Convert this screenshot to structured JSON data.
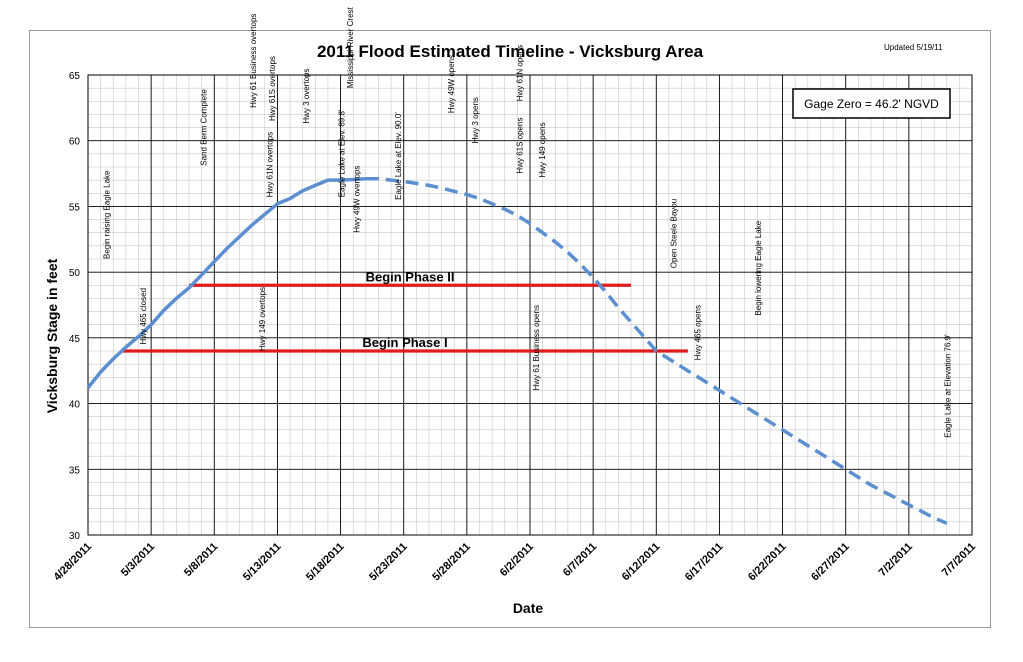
{
  "chart_data": {
    "type": "line",
    "title": "2011 Flood Estimated Timeline - Vicksburg Area",
    "updated": "Updated 5/19/11",
    "xlabel": "Date",
    "ylabel": "Vicksburg Stage in feet",
    "x_start": "2011-04-28",
    "x_end": "2011-07-07",
    "xlim_days": [
      0,
      70
    ],
    "ylim": [
      30,
      65
    ],
    "y_ticks": [
      30,
      35,
      40,
      45,
      50,
      55,
      60,
      65
    ],
    "x_ticks": [
      {
        "day": 0,
        "label": "4/28/2011"
      },
      {
        "day": 5,
        "label": "5/3/2011"
      },
      {
        "day": 10,
        "label": "5/8/2011"
      },
      {
        "day": 15,
        "label": "5/13/2011"
      },
      {
        "day": 20,
        "label": "5/18/2011"
      },
      {
        "day": 25,
        "label": "5/23/2011"
      },
      {
        "day": 30,
        "label": "5/28/2011"
      },
      {
        "day": 35,
        "label": "6/2/2011"
      },
      {
        "day": 40,
        "label": "6/7/2011"
      },
      {
        "day": 45,
        "label": "6/12/2011"
      },
      {
        "day": 50,
        "label": "6/17/2011"
      },
      {
        "day": 55,
        "label": "6/22/2011"
      },
      {
        "day": 60,
        "label": "6/27/2011"
      },
      {
        "day": 65,
        "label": "7/2/2011"
      },
      {
        "day": 70,
        "label": "7/7/2011"
      }
    ],
    "grid": true,
    "gage_note": "Gage Zero = 46.2' NGVD",
    "series": [
      {
        "style": "solid",
        "color": "#5b8fd0",
        "points": [
          [
            0,
            41.2
          ],
          [
            1,
            42.4
          ],
          [
            2,
            43.4
          ],
          [
            3,
            44.3
          ],
          [
            4,
            45.1
          ],
          [
            5,
            46.0
          ],
          [
            6,
            47.1
          ],
          [
            7,
            48.0
          ],
          [
            8,
            48.8
          ],
          [
            9,
            49.8
          ],
          [
            10,
            50.8
          ],
          [
            11,
            51.8
          ],
          [
            12,
            52.7
          ],
          [
            13,
            53.6
          ],
          [
            14,
            54.4
          ],
          [
            15,
            55.2
          ],
          [
            16,
            55.6
          ],
          [
            17,
            56.2
          ],
          [
            18,
            56.6
          ],
          [
            19,
            57.0
          ],
          [
            20,
            57.0
          ],
          [
            21,
            57.05
          ],
          [
            22,
            57.1
          ]
        ]
      },
      {
        "style": "dashed",
        "color": "#5b8fd0",
        "points": [
          [
            22,
            57.1
          ],
          [
            23,
            57.1
          ],
          [
            24,
            57.0
          ],
          [
            25,
            56.9
          ],
          [
            26,
            56.75
          ],
          [
            27,
            56.6
          ],
          [
            28,
            56.4
          ],
          [
            29,
            56.15
          ],
          [
            30,
            55.9
          ],
          [
            31,
            55.6
          ],
          [
            32,
            55.2
          ],
          [
            33,
            54.8
          ],
          [
            34,
            54.3
          ],
          [
            35,
            53.7
          ],
          [
            36,
            53.0
          ],
          [
            37,
            52.3
          ],
          [
            38,
            51.5
          ],
          [
            39,
            50.6
          ],
          [
            40,
            49.6
          ],
          [
            41,
            48.5
          ],
          [
            42,
            47.3
          ],
          [
            43,
            46.2
          ],
          [
            44,
            45.1
          ],
          [
            45,
            44.0
          ],
          [
            46,
            43.4
          ],
          [
            47,
            42.8
          ],
          [
            48,
            42.2
          ],
          [
            49,
            41.6
          ],
          [
            50,
            41.0
          ],
          [
            51,
            40.4
          ],
          [
            52,
            39.8
          ],
          [
            53,
            39.2
          ],
          [
            54,
            38.6
          ],
          [
            55,
            38.0
          ],
          [
            56,
            37.4
          ],
          [
            57,
            36.8
          ],
          [
            58,
            36.2
          ],
          [
            59,
            35.6
          ],
          [
            60,
            35.0
          ],
          [
            61,
            34.4
          ],
          [
            62,
            33.8
          ],
          [
            63,
            33.3
          ],
          [
            64,
            32.8
          ],
          [
            65,
            32.3
          ],
          [
            66,
            31.8
          ],
          [
            67,
            31.3
          ],
          [
            68,
            30.9
          ]
        ]
      }
    ],
    "phases": [
      {
        "label": "Begin Phase I",
        "x_start": 2.7,
        "x_end": 47.5,
        "y": 44.0,
        "color": "#e01c1c"
      },
      {
        "label": "Begin Phase II",
        "x_start": 8.0,
        "x_end": 43.0,
        "y": 49.0,
        "color": "#e01c1c"
      }
    ],
    "annotations": [
      {
        "text": "Begin raising Eagle Lake",
        "day": 1.7,
        "stage": 51
      },
      {
        "text": "Hwy 465 closed",
        "day": 4.6,
        "stage": 44.5
      },
      {
        "text": "Sand Berm Complete",
        "day": 9.4,
        "stage": 58.1
      },
      {
        "text": "Hwy 61 Business overtops",
        "day": 13.3,
        "stage": 62.5
      },
      {
        "text": "Hwy 61S overtops",
        "day": 14.8,
        "stage": 61.5
      },
      {
        "text": "Hwy 61N overtops",
        "day": 14.6,
        "stage": 55.7
      },
      {
        "text": "Hwy 149 overtops",
        "day": 14.0,
        "stage": 44.0
      },
      {
        "text": "Hwy 3 overtops",
        "day": 17.5,
        "stage": 61.3
      },
      {
        "text": "Mississippi River Crest",
        "day": 21.0,
        "stage": 64.0
      },
      {
        "text": "Eagle Lake at Elev. 89.8'",
        "day": 20.3,
        "stage": 55.7
      },
      {
        "text": "Hwy 49W overtops",
        "day": 21.5,
        "stage": 53.0
      },
      {
        "text": "Eagle Lake at Elev. 90.0'",
        "day": 24.8,
        "stage": 55.5
      },
      {
        "text": "Hwy 49W opens",
        "day": 29.0,
        "stage": 62.1
      },
      {
        "text": "Hwy 3 opens",
        "day": 30.9,
        "stage": 59.8
      },
      {
        "text": "Hwy 61N opens",
        "day": 34.4,
        "stage": 63.0
      },
      {
        "text": "Hwy 61S opens",
        "day": 34.4,
        "stage": 57.5
      },
      {
        "text": "Hwy 149 opens",
        "day": 36.2,
        "stage": 57.2
      },
      {
        "text": "Hwy 61 Business opens",
        "day": 35.7,
        "stage": 41.0
      },
      {
        "text": "Open Steele Bayou",
        "day": 46.6,
        "stage": 50.3
      },
      {
        "text": "Hwy 465 opens",
        "day": 48.5,
        "stage": 43.3
      },
      {
        "text": "Begin lowering Eagle Lake",
        "day": 53.3,
        "stage": 46.7
      },
      {
        "text": "Eagle Lake at Elevation 76.9'",
        "day": 68.3,
        "stage": 37.4
      }
    ]
  }
}
